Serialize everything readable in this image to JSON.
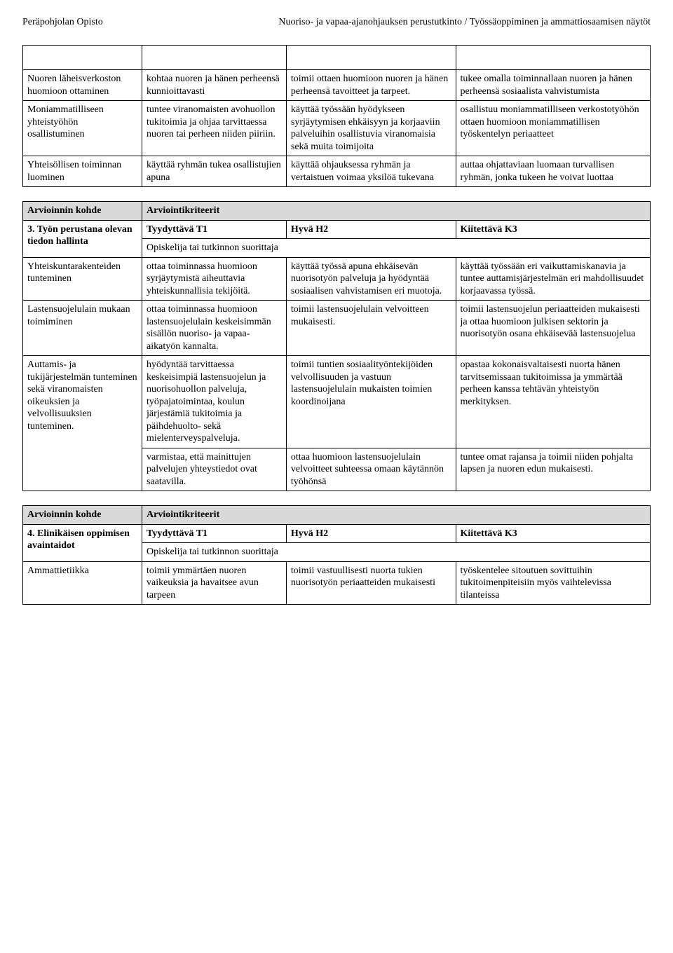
{
  "header": {
    "left": "Peräpohjolan Opisto",
    "right": "Nuoriso- ja vapaa-ajanohjauksen perustutkinto / Työssäoppiminen ja ammattiosaamisen näytöt"
  },
  "table1": {
    "rows": [
      [
        "Nuoren läheisverkoston huomioon ottaminen",
        "kohtaa nuoren ja hänen perheensä kunnioittavasti",
        "toimii ottaen huomioon nuoren ja hänen perheensä tavoitteet ja tarpeet.",
        "tukee omalla toiminnallaan nuoren ja hänen perheensä sosiaalista vahvistumista"
      ],
      [
        "Moniammatilliseen yhteistyöhön osallistuminen",
        "tuntee viranomaisten avohuollon tukitoimia ja ohjaa tarvittaessa nuoren tai perheen niiden piiriin.",
        "käyttää työssään hyödykseen syrjäytymisen ehkäisyyn ja korjaaviin palveluihin osallistuvia viranomaisia sekä muita toimijoita",
        "osallistuu moniammatilliseen verkostotyöhön ottaen huomioon moniammatillisen työskentelyn periaatteet"
      ],
      [
        "Yhteisöllisen toiminnan luominen",
        "käyttää ryhmän tukea osallistujien apuna",
        "käyttää ohjauksessa ryhmän ja vertaistuen voimaa yksilöä tukevana",
        "auttaa ohjattaviaan luomaan turvallisen ryhmän, jonka tukeen he voivat luottaa"
      ]
    ]
  },
  "table2": {
    "section_head_left": "Arvioinnin kohde",
    "section_head_right": "Arviointikriteerit",
    "subhead_left": "3. Työn perustana olevan tiedon hallinta",
    "subhead_c2": "Tyydyttävä T1",
    "subhead_c3": "Hyvä H2",
    "subhead_c4": "Kiitettävä K3",
    "opiskelija": "Opiskelija tai tutkinnon suorittaja",
    "row1": [
      "Yhteiskuntarakenteiden tunteminen",
      "ottaa toiminnassa huomioon syrjäytymistä aiheuttavia yhteiskunnallisia tekijöitä.",
      "käyttää työssä apuna ehkäisevän nuorisotyön palveluja ja hyödyntää sosiaalisen vahvistamisen eri muotoja.",
      "käyttää työssään eri vaikuttamiskanavia ja tuntee auttamisjärjestelmän eri mahdollisuudet korjaavassa työssä."
    ],
    "row2": [
      "Lastensuojelulain mukaan toimiminen",
      "ottaa toiminnassa huomioon lastensuojelulain keskeisimmän sisällön nuoriso- ja vapaa-aikatyön kannalta.",
      "toimii lastensuojelulain velvoitteen mukaisesti.",
      "toimii lastensuojelun periaatteiden mukaisesti ja ottaa huomioon julkisen sektorin ja nuorisotyön osana ehkäisevää lastensuojelua"
    ],
    "row3": [
      "Auttamis- ja tukijärjestelmän tunteminen sekä viranomaisten oikeuksien  ja velvollisuuksien tunteminen.",
      "hyödyntää tarvittaessa keskeisimpiä lastensuojelun ja nuorisohuollon palveluja, työpajatoimintaa, koulun järjestämiä tukitoimia ja päihdehuolto- sekä mielenterveyspalveluja.",
      "toimii tuntien sosiaalityöntekijöiden velvollisuuden ja vastuun lastensuojelulain mukaisten toimien koordinoijana",
      "opastaa kokonaisvaltaisesti nuorta hänen tarvitsemissaan tukitoimissa ja ymmärtää perheen kanssa tehtävän yhteistyön merkityksen."
    ],
    "row4": [
      "",
      "varmistaa, että mainittujen palvelujen yhteystiedot ovat saatavilla.",
      "ottaa huomioon lastensuojelulain velvoitteet suhteessa omaan käytännön työhönsä",
      "tuntee omat rajansa ja toimii niiden pohjalta lapsen ja nuoren edun mukaisesti."
    ]
  },
  "table3": {
    "section_head_left": "Arvioinnin kohde",
    "section_head_right": "Arviointikriteerit",
    "subhead_left": "4.  Elinikäisen oppimisen avaintaidot",
    "subhead_c2": "Tyydyttävä T1",
    "subhead_c3": "Hyvä H2",
    "subhead_c4": "Kiitettävä K3",
    "opiskelija": "Opiskelija tai tutkinnon suorittaja",
    "row1": [
      "Ammattietiikka",
      "toimii ymmärtäen nuoren vaikeuksia ja havaitsee avun tarpeen",
      "toimii vastuullisesti nuorta tukien nuorisotyön periaatteiden mukaisesti",
      "työskentelee sitoutuen sovittuihin tukitoimenpiteisiin myös vaihtelevissa tilanteissa"
    ]
  }
}
